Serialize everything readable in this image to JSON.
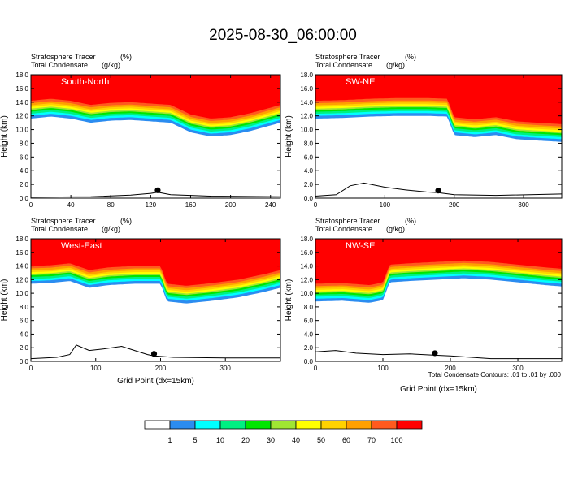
{
  "title": "2025-08-30_06:00:00",
  "colors": {
    "levels": [
      "#ffffff",
      "#2b8cf0",
      "#00ffff",
      "#00f082",
      "#00e600",
      "#a0e632",
      "#ffff00",
      "#ffd200",
      "#ffa000",
      "#ff5a1e",
      "#ff0000"
    ]
  },
  "colorbar": {
    "labels": [
      "1",
      "5",
      "10",
      "20",
      "30",
      "40",
      "50",
      "60",
      "70",
      "100"
    ]
  },
  "footnote": "Total Condensate Contours: .01 to .01 by .000",
  "chart_data": [
    {
      "type": "heatmap",
      "panel_label": "South-North",
      "field1_label": "Stratosphere Tracer",
      "field1_units": "(%)",
      "field2_label": "Total Condensate",
      "field2_units": "(g/kg)",
      "ylabel": "Height (km)",
      "xlabel": "",
      "xlim": [
        0,
        250
      ],
      "ylim": [
        0,
        18
      ],
      "xticks": [
        0,
        40,
        80,
        120,
        160,
        200,
        240
      ],
      "yticks": [
        "0.0",
        "2.0",
        "4.0",
        "6.0",
        "8.0",
        "10.0",
        "12.0",
        "14.0",
        "16.0",
        "18.0"
      ],
      "marker_x": 127,
      "tropopause": [
        [
          0,
          13.2
        ],
        [
          20,
          13.5
        ],
        [
          40,
          13.2
        ],
        [
          60,
          12.6
        ],
        [
          80,
          12.9
        ],
        [
          100,
          13.0
        ],
        [
          120,
          12.8
        ],
        [
          140,
          12.6
        ],
        [
          160,
          11.2
        ],
        [
          170,
          10.9
        ],
        [
          180,
          10.6
        ],
        [
          200,
          10.8
        ],
        [
          220,
          11.4
        ],
        [
          240,
          12.2
        ],
        [
          250,
          12.6
        ]
      ],
      "terrain": [
        [
          0,
          0.15
        ],
        [
          60,
          0.2
        ],
        [
          100,
          0.45
        ],
        [
          120,
          0.7
        ],
        [
          127,
          0.85
        ],
        [
          140,
          0.5
        ],
        [
          180,
          0.3
        ],
        [
          250,
          0.2
        ]
      ]
    },
    {
      "type": "heatmap",
      "panel_label": "SW-NE",
      "field1_label": "Stratosphere Tracer",
      "field1_units": "(%)",
      "field2_label": "Total Condensate",
      "field2_units": "(g/kg)",
      "ylabel": "Height (km)",
      "xlabel": "",
      "xlim": [
        0,
        355
      ],
      "ylim": [
        0,
        18
      ],
      "xticks": [
        0,
        100,
        200,
        300
      ],
      "yticks": [
        "0.0",
        "2.0",
        "4.0",
        "6.0",
        "8.0",
        "10.0",
        "12.0",
        "14.0",
        "16.0",
        "18.0"
      ],
      "marker_x": 177,
      "tropopause": [
        [
          0,
          13.2
        ],
        [
          40,
          13.3
        ],
        [
          80,
          13.5
        ],
        [
          120,
          13.6
        ],
        [
          160,
          13.6
        ],
        [
          190,
          13.5
        ],
        [
          200,
          10.8
        ],
        [
          230,
          10.5
        ],
        [
          260,
          10.8
        ],
        [
          290,
          10.2
        ],
        [
          320,
          10.0
        ],
        [
          355,
          9.8
        ]
      ],
      "terrain": [
        [
          0,
          0.3
        ],
        [
          30,
          0.5
        ],
        [
          50,
          1.8
        ],
        [
          70,
          2.2
        ],
        [
          100,
          1.6
        ],
        [
          130,
          1.2
        ],
        [
          160,
          0.9
        ],
        [
          177,
          0.8
        ],
        [
          200,
          0.5
        ],
        [
          260,
          0.4
        ],
        [
          355,
          0.6
        ]
      ]
    },
    {
      "type": "heatmap",
      "panel_label": "West-East",
      "field1_label": "Stratosphere Tracer",
      "field1_units": "(%)",
      "field2_label": "Total Condensate",
      "field2_units": "(g/kg)",
      "ylabel": "Height (km)",
      "xlabel": "Grid Point (dx=15km)",
      "xlim": [
        0,
        385
      ],
      "ylim": [
        0,
        18
      ],
      "xticks": [
        0,
        100,
        200,
        300
      ],
      "yticks": [
        "0.0",
        "2.0",
        "4.0",
        "6.0",
        "8.0",
        "10.0",
        "12.0",
        "14.0",
        "16.0",
        "18.0"
      ],
      "marker_x": 190,
      "tropopause": [
        [
          0,
          13.0
        ],
        [
          30,
          13.1
        ],
        [
          60,
          13.4
        ],
        [
          90,
          12.4
        ],
        [
          120,
          12.8
        ],
        [
          160,
          13.0
        ],
        [
          200,
          13.0
        ],
        [
          210,
          10.4
        ],
        [
          240,
          10.1
        ],
        [
          280,
          10.5
        ],
        [
          320,
          11.0
        ],
        [
          360,
          11.8
        ],
        [
          385,
          12.4
        ]
      ],
      "terrain": [
        [
          0,
          0.4
        ],
        [
          40,
          0.6
        ],
        [
          60,
          1.0
        ],
        [
          70,
          2.4
        ],
        [
          90,
          1.6
        ],
        [
          110,
          1.8
        ],
        [
          140,
          2.2
        ],
        [
          160,
          1.6
        ],
        [
          180,
          1.0
        ],
        [
          190,
          0.8
        ],
        [
          220,
          0.6
        ],
        [
          300,
          0.5
        ],
        [
          385,
          0.5
        ]
      ]
    },
    {
      "type": "heatmap",
      "panel_label": "NW-SE",
      "field1_label": "Stratosphere Tracer",
      "field1_units": "(%)",
      "field2_label": "Total Condensate",
      "field2_units": "(g/kg)",
      "ylabel": "Height (km)",
      "xlabel": "Grid Point (dx=15km)",
      "xlim": [
        0,
        365
      ],
      "ylim": [
        0,
        18
      ],
      "xticks": [
        0,
        100,
        200,
        300
      ],
      "yticks": [
        "0.0",
        "2.0",
        "4.0",
        "6.0",
        "8.0",
        "10.0",
        "12.0",
        "14.0",
        "16.0",
        "18.0"
      ],
      "marker_x": 177,
      "tropopause": [
        [
          0,
          10.4
        ],
        [
          40,
          10.5
        ],
        [
          80,
          10.2
        ],
        [
          100,
          10.6
        ],
        [
          110,
          13.2
        ],
        [
          140,
          13.4
        ],
        [
          180,
          13.6
        ],
        [
          220,
          13.8
        ],
        [
          260,
          13.6
        ],
        [
          300,
          13.2
        ],
        [
          340,
          12.8
        ],
        [
          365,
          12.6
        ]
      ],
      "terrain": [
        [
          0,
          1.4
        ],
        [
          30,
          1.6
        ],
        [
          60,
          1.2
        ],
        [
          100,
          1.0
        ],
        [
          140,
          1.1
        ],
        [
          177,
          0.9
        ],
        [
          200,
          0.8
        ],
        [
          260,
          0.4
        ],
        [
          365,
          0.4
        ]
      ]
    }
  ]
}
